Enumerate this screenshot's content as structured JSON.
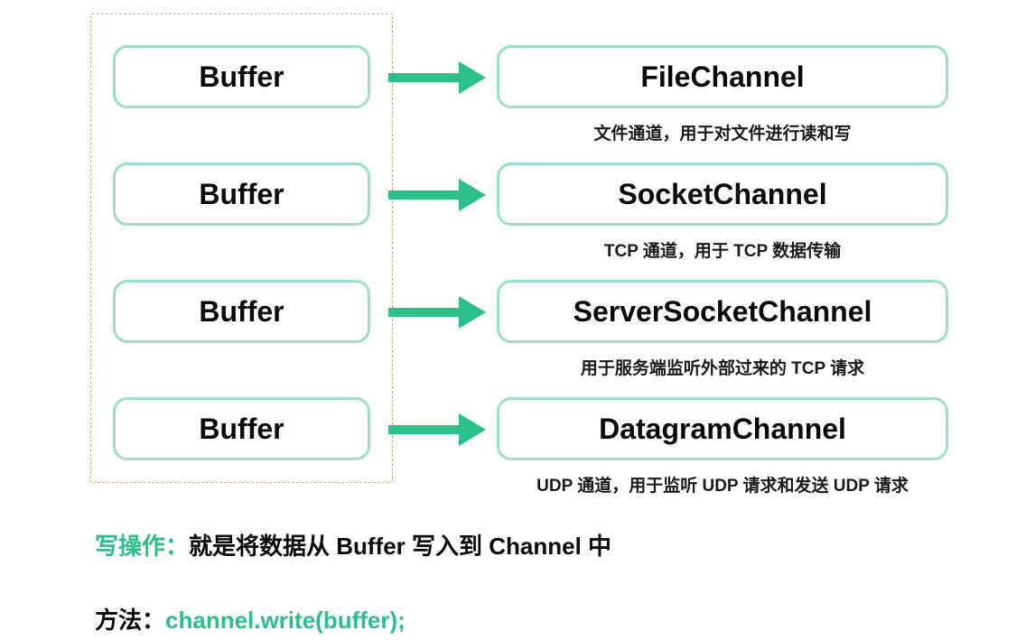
{
  "colors": {
    "accent": "#2bbf8a",
    "arrow": "#2bbf8a",
    "box_border": "#9be0c4",
    "dashed_border": "#e8a96b",
    "text": "#0a0a0a",
    "desc_text": "#1a1a1a",
    "background": "#ffffff"
  },
  "typography": {
    "box_fontsize": 32,
    "desc_fontsize": 19,
    "footer_fontsize": 26
  },
  "layout": {
    "row_tops": [
      35,
      165,
      295,
      425
    ],
    "arrow_line_width": 82,
    "arrow_line_height": 10,
    "arrow_head_len": 30,
    "arrow_head_half": 18
  },
  "rows": [
    {
      "buffer": "Buffer",
      "channel": "FileChannel",
      "desc": "文件通道，用于对文件进行读和写"
    },
    {
      "buffer": "Buffer",
      "channel": "SocketChannel",
      "desc": "TCP 通道，用于 TCP 数据传输"
    },
    {
      "buffer": "Buffer",
      "channel": "ServerSocketChannel",
      "desc": "用于服务端监听外部过来的 TCP 请求"
    },
    {
      "buffer": "Buffer",
      "channel": "DatagramChannel",
      "desc": "UDP 通道，用于监听 UDP 请求和发送 UDP 请求"
    }
  ],
  "footer": {
    "line1_prefix": "写操作：",
    "line1_body": "就是将数据从 Buffer 写入到 Channel 中",
    "line2_prefix": "方法：",
    "line2_code": "channel.write(buffer);"
  }
}
